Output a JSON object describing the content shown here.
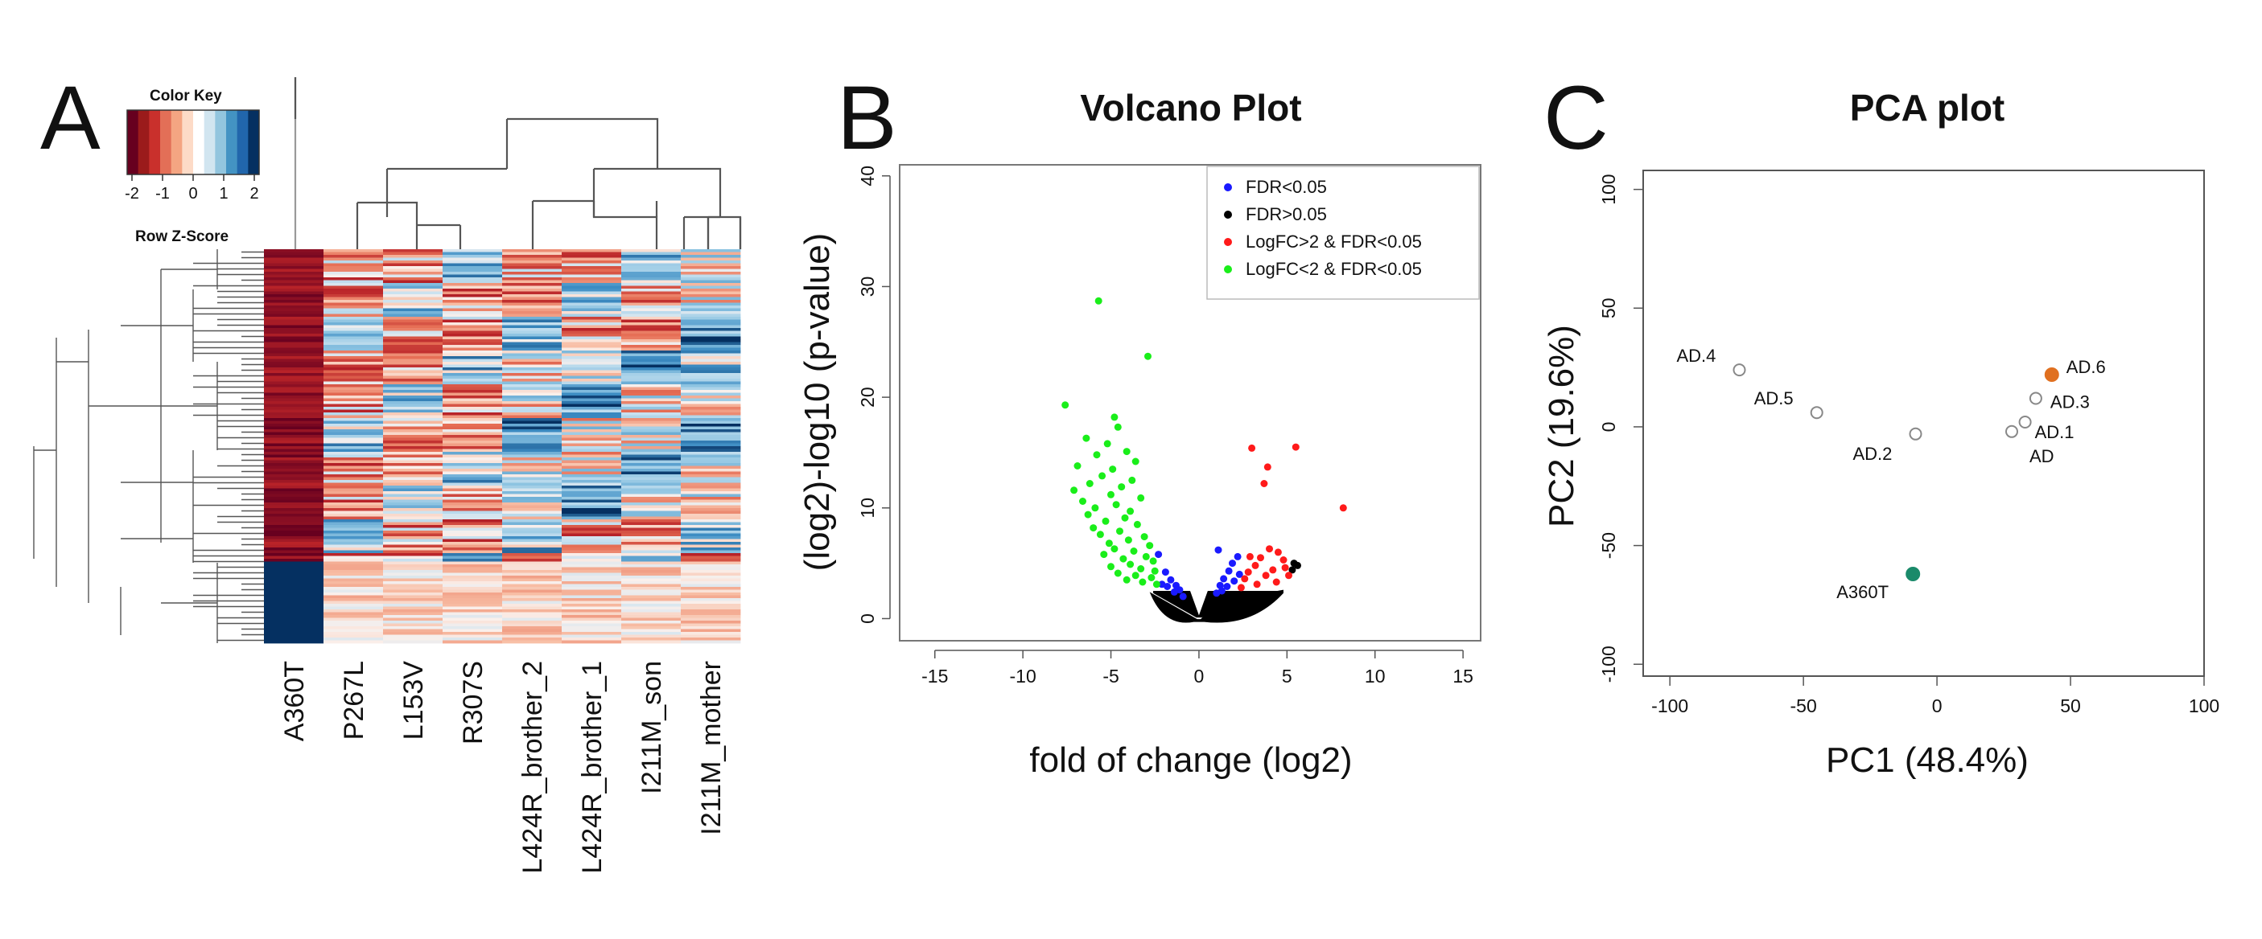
{
  "panels": {
    "a": "A",
    "b": "B",
    "c": "C"
  },
  "color_key": {
    "title": "Color  Key",
    "subtitle": "Row Z-Score",
    "ticks": [
      "-2",
      "-1",
      "0",
      "1",
      "2"
    ],
    "colors": [
      "#67001f",
      "#9b1b1b",
      "#c9302c",
      "#e36f57",
      "#f4a582",
      "#fddbc7",
      "#ffffff",
      "#d1e5f0",
      "#92c5de",
      "#4393c3",
      "#2166ac",
      "#053061"
    ]
  },
  "chart_data": [
    {
      "type": "heatmap",
      "title": "",
      "columns": [
        "A360T",
        "P267L",
        "L153V",
        "R307S",
        "L424R_brother_2",
        "L424R_brother_1",
        "I211M_son",
        "I211M_mother"
      ],
      "value_range": [
        -2,
        2
      ],
      "rows_approx": 140,
      "column_dendrogram": true,
      "row_dendrogram": true
    },
    {
      "type": "scatter",
      "title": "Volcano Plot",
      "xlabel": "fold of change  (log2)",
      "ylabel": "(log2)-log10  (p-value)",
      "xlim": [
        -17,
        16
      ],
      "ylim": [
        -2,
        41
      ],
      "xticks": [
        "-15",
        "-10",
        "-5",
        "0",
        "5",
        "10",
        "15"
      ],
      "yticks": [
        "0",
        "10",
        "20",
        "30",
        "40"
      ],
      "legend_position": "top-right",
      "series": [
        {
          "name": "FDR<0.05",
          "color": "#1a1aff",
          "points": [
            [
              -2.3,
              5.8
            ],
            [
              -1.9,
              4.2
            ],
            [
              -1.6,
              3.5
            ],
            [
              -1.3,
              3.0
            ],
            [
              -1.1,
              2.6
            ],
            [
              -2.1,
              3.1
            ],
            [
              -1.8,
              2.9
            ],
            [
              -1.4,
              2.4
            ],
            [
              -0.9,
              2.0
            ],
            [
              1.0,
              2.3
            ],
            [
              1.2,
              3.0
            ],
            [
              1.4,
              3.6
            ],
            [
              1.7,
              4.3
            ],
            [
              1.9,
              5.0
            ],
            [
              2.2,
              5.6
            ],
            [
              1.6,
              2.9
            ],
            [
              2.0,
              3.4
            ],
            [
              1.3,
              2.5
            ],
            [
              2.3,
              4.0
            ],
            [
              1.1,
              6.2
            ]
          ]
        },
        {
          "name": "FDR>0.05",
          "color": "#000000",
          "points": [
            [
              5.6,
              4.8
            ],
            [
              5.3,
              4.4
            ],
            [
              5.4,
              5.0
            ]
          ]
        },
        {
          "name": "LogFC>2 & FDR<0.05",
          "color": "#ff1a1a",
          "points": [
            [
              3.0,
              15.4
            ],
            [
              5.5,
              15.5
            ],
            [
              3.7,
              12.2
            ],
            [
              3.9,
              13.7
            ],
            [
              8.2,
              10.0
            ],
            [
              4.0,
              6.3
            ],
            [
              4.5,
              6.0
            ],
            [
              4.8,
              5.3
            ],
            [
              3.2,
              4.8
            ],
            [
              2.8,
              4.2
            ],
            [
              3.5,
              5.5
            ],
            [
              4.2,
              4.4
            ],
            [
              2.6,
              3.6
            ],
            [
              3.8,
              3.9
            ],
            [
              4.9,
              4.6
            ],
            [
              5.1,
              3.9
            ],
            [
              2.9,
              5.6
            ],
            [
              3.3,
              3.1
            ],
            [
              4.4,
              3.3
            ],
            [
              2.4,
              2.8
            ]
          ]
        },
        {
          "name": "LogFC<2 & FDR<0.05",
          "color": "#1aee1a",
          "points": [
            [
              -5.7,
              28.7
            ],
            [
              -2.9,
              23.7
            ],
            [
              -7.6,
              19.3
            ],
            [
              -4.8,
              18.2
            ],
            [
              -4.6,
              17.3
            ],
            [
              -6.4,
              16.3
            ],
            [
              -5.2,
              15.8
            ],
            [
              -4.1,
              15.1
            ],
            [
              -5.8,
              14.8
            ],
            [
              -3.6,
              14.2
            ],
            [
              -6.9,
              13.8
            ],
            [
              -4.9,
              13.5
            ],
            [
              -5.5,
              12.9
            ],
            [
              -3.8,
              12.5
            ],
            [
              -6.2,
              12.2
            ],
            [
              -4.4,
              11.9
            ],
            [
              -7.1,
              11.6
            ],
            [
              -5.0,
              11.2
            ],
            [
              -3.3,
              10.9
            ],
            [
              -6.6,
              10.6
            ],
            [
              -4.7,
              10.3
            ],
            [
              -5.9,
              10.0
            ],
            [
              -3.9,
              9.7
            ],
            [
              -6.3,
              9.4
            ],
            [
              -4.2,
              9.1
            ],
            [
              -5.3,
              8.8
            ],
            [
              -3.5,
              8.5
            ],
            [
              -6.0,
              8.2
            ],
            [
              -4.5,
              7.9
            ],
            [
              -5.6,
              7.6
            ],
            [
              -3.1,
              7.4
            ],
            [
              -4.0,
              7.1
            ],
            [
              -5.1,
              6.8
            ],
            [
              -2.8,
              6.6
            ],
            [
              -4.8,
              6.3
            ],
            [
              -3.7,
              6.1
            ],
            [
              -5.4,
              5.8
            ],
            [
              -3.0,
              5.6
            ],
            [
              -4.3,
              5.4
            ],
            [
              -2.6,
              5.2
            ],
            [
              -3.9,
              4.9
            ],
            [
              -5.0,
              4.7
            ],
            [
              -3.3,
              4.5
            ],
            [
              -2.5,
              4.3
            ],
            [
              -4.6,
              4.1
            ],
            [
              -3.6,
              3.9
            ],
            [
              -2.7,
              3.7
            ],
            [
              -4.1,
              3.5
            ],
            [
              -3.2,
              3.3
            ],
            [
              -2.4,
              3.1
            ]
          ]
        }
      ]
    },
    {
      "type": "scatter",
      "title": "PCA plot",
      "xlabel": "PC1 (48.4%)",
      "ylabel": "PC2 (19.6%)",
      "xlim": [
        -110,
        100
      ],
      "ylim": [
        -105,
        108
      ],
      "xticks": [
        "-100",
        "-50",
        "0",
        "50",
        "100"
      ],
      "yticks": [
        "-100",
        "-50",
        "0",
        "50",
        "100"
      ],
      "points": [
        {
          "label": "AD.4",
          "x": -74,
          "y": 24,
          "fill": "none"
        },
        {
          "label": "AD.5",
          "x": -45,
          "y": 6,
          "fill": "none"
        },
        {
          "label": "AD.2",
          "x": -8,
          "y": -3,
          "fill": "none"
        },
        {
          "label": "AD.6",
          "x": 43,
          "y": 22,
          "fill": "#e07020"
        },
        {
          "label": "AD.3",
          "x": 37,
          "y": 12,
          "fill": "none"
        },
        {
          "label": "AD.1",
          "x": 33,
          "y": 2,
          "fill": "none"
        },
        {
          "label": "AD",
          "x": 28,
          "y": -2,
          "fill": "none"
        },
        {
          "label": "A360T",
          "x": -9,
          "y": -62,
          "fill": "#1a8a6a"
        }
      ]
    }
  ]
}
